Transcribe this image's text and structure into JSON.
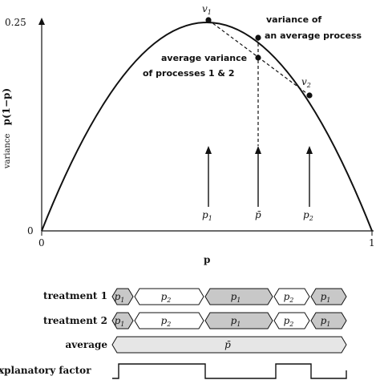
{
  "plot": {
    "x_axis_label": "p",
    "y_axis_label": "p(1−p)",
    "y_axis_label_prefix": "variance",
    "x_ticks": [
      "0",
      "1"
    ],
    "y_ticks": [
      "0",
      "0.25"
    ]
  },
  "annotations": {
    "v1": "v",
    "v1_sub": "1",
    "v2": "v",
    "v2_sub": "2",
    "variance_of_average_line1": "variance of",
    "variance_of_average_line2": "an average process",
    "average_variance_line1": "average variance",
    "average_variance_line2": "of processes 1 & 2"
  },
  "markers": {
    "p1": "p",
    "p1_sub": "1",
    "pbar": "p̄",
    "p2": "p",
    "p2_sub": "2"
  },
  "timeline": {
    "rows": [
      {
        "label": "treatment 1",
        "segments": [
          {
            "text": "p",
            "sub": "1",
            "shaded": true
          },
          {
            "text": "p",
            "sub": "2",
            "shaded": false
          },
          {
            "text": "p",
            "sub": "1",
            "shaded": true
          },
          {
            "text": "p",
            "sub": "2",
            "shaded": false
          },
          {
            "text": "p",
            "sub": "1",
            "shaded": true
          }
        ]
      },
      {
        "label": "treatment 2",
        "segments": [
          {
            "text": "p",
            "sub": "1",
            "shaded": true
          },
          {
            "text": "p",
            "sub": "2",
            "shaded": false
          },
          {
            "text": "p",
            "sub": "1",
            "shaded": true
          },
          {
            "text": "p",
            "sub": "2",
            "shaded": false
          },
          {
            "text": "p",
            "sub": "1",
            "shaded": true
          }
        ]
      }
    ],
    "average_label": "average",
    "average_value": "p̄",
    "factor_label": "xplanatory factor"
  },
  "colors": {
    "ink": "#111111",
    "shaded": "#c8c8c8",
    "average_fill": "#e6e6e6"
  }
}
